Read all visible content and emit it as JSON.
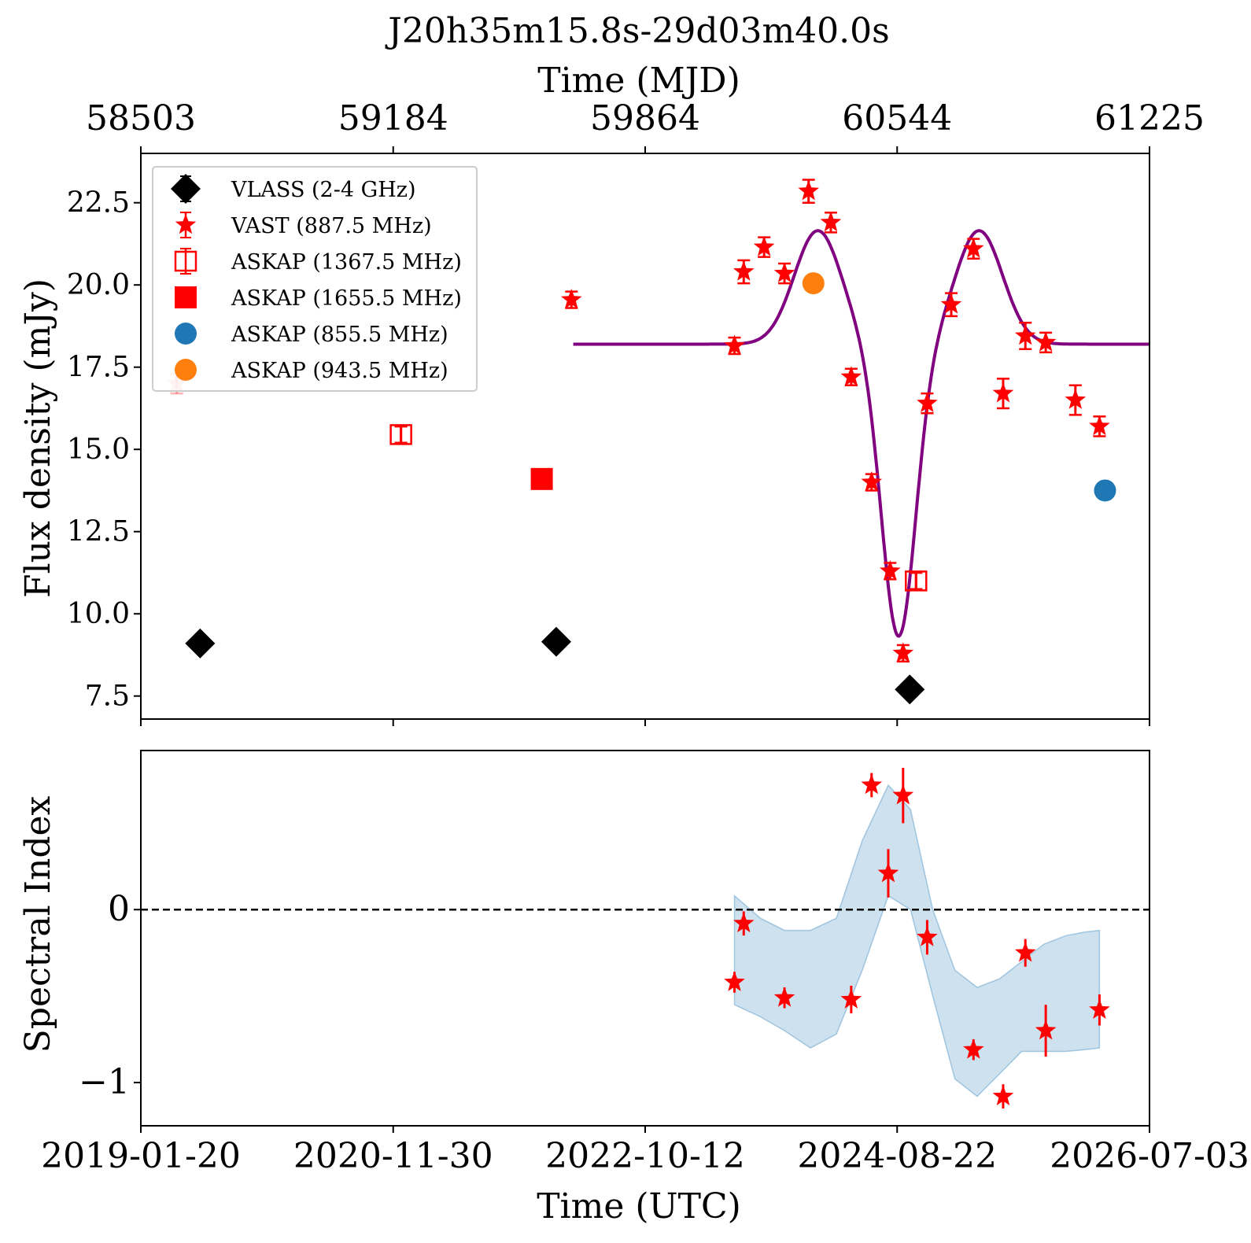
{
  "chart_data": [
    {
      "type": "scatter",
      "title": "J20h35m15.8s-29d03m40.0s",
      "top_axis_label": "Time (MJD)",
      "top_ticks": [
        "58503",
        "59184",
        "59864",
        "60544",
        "61225"
      ],
      "ylabel": "Flux density (mJy)",
      "ylim": [
        6.8,
        24.0
      ],
      "yticks": [
        "7.5",
        "10.0",
        "12.5",
        "15.0",
        "17.5",
        "20.0",
        "22.5"
      ],
      "xlim_mjd": [
        58503,
        61225
      ],
      "grid": false,
      "legend_position": "upper-left",
      "series": [
        {
          "name": "VLASS (2-4 GHz)",
          "marker": "diamond",
          "color": "#000000",
          "points": [
            {
              "mjd": 58663,
              "y": 9.1,
              "err": 0.0
            },
            {
              "mjd": 59624,
              "y": 9.15,
              "err": 0.0
            },
            {
              "mjd": 60578,
              "y": 7.7,
              "err": 0.0
            }
          ]
        },
        {
          "name": "VAST (887.5 MHz)",
          "marker": "star",
          "color": "#ff0000",
          "points": [
            {
              "mjd": 58600,
              "y": 17.0,
              "err": 0.3,
              "faded": true
            },
            {
              "mjd": 59665,
              "y": 19.55,
              "err": 0.25
            },
            {
              "mjd": 60105,
              "y": 18.15,
              "err": 0.25
            },
            {
              "mjd": 60130,
              "y": 20.4,
              "err": 0.35
            },
            {
              "mjd": 60185,
              "y": 21.15,
              "err": 0.3
            },
            {
              "mjd": 60240,
              "y": 20.35,
              "err": 0.3
            },
            {
              "mjd": 60305,
              "y": 22.85,
              "err": 0.35
            },
            {
              "mjd": 60365,
              "y": 21.9,
              "err": 0.3
            },
            {
              "mjd": 60420,
              "y": 17.2,
              "err": 0.25
            },
            {
              "mjd": 60475,
              "y": 14.0,
              "err": 0.25
            },
            {
              "mjd": 60525,
              "y": 11.3,
              "err": 0.25
            },
            {
              "mjd": 60560,
              "y": 8.8,
              "err": 0.25
            },
            {
              "mjd": 60625,
              "y": 16.4,
              "err": 0.3
            },
            {
              "mjd": 60690,
              "y": 19.4,
              "err": 0.35
            },
            {
              "mjd": 60750,
              "y": 21.1,
              "err": 0.3
            },
            {
              "mjd": 60830,
              "y": 16.7,
              "err": 0.45
            },
            {
              "mjd": 60890,
              "y": 18.45,
              "err": 0.4
            },
            {
              "mjd": 60945,
              "y": 18.25,
              "err": 0.3
            },
            {
              "mjd": 61025,
              "y": 16.5,
              "err": 0.45
            },
            {
              "mjd": 61090,
              "y": 15.7,
              "err": 0.3
            }
          ]
        },
        {
          "name": "ASKAP (1367.5 MHz)",
          "marker": "open-square",
          "color": "#ff0000",
          "points": [
            {
              "mjd": 59205,
              "y": 15.45,
              "err": 0.25
            },
            {
              "mjd": 60595,
              "y": 11.0,
              "err": 0.25
            }
          ]
        },
        {
          "name": "ASKAP (1655.5 MHz)",
          "marker": "square",
          "color": "#ff0000",
          "points": [
            {
              "mjd": 59585,
              "y": 14.1,
              "err": 0.1
            }
          ]
        },
        {
          "name": "ASKAP (855.5 MHz)",
          "marker": "circle",
          "color": "#1f77b4",
          "points": [
            {
              "mjd": 61105,
              "y": 13.75,
              "err": 0.1
            }
          ]
        },
        {
          "name": "ASKAP (943.5 MHz)",
          "marker": "circle",
          "color": "#ff7f0e",
          "points": [
            {
              "mjd": 60318,
              "y": 20.05,
              "err": 0.1
            }
          ]
        }
      ],
      "model_curve": {
        "color": "#800080",
        "x_start_mjd": 59670,
        "x_end_mjd": 61225,
        "baseline": 18.2,
        "components": [
          {
            "center_mjd": 60330,
            "amplitude": 3.45,
            "width_mjd": 90
          },
          {
            "center_mjd": 60548,
            "amplitude": -8.9,
            "width_mjd": 65
          },
          {
            "center_mjd": 60765,
            "amplitude": 3.45,
            "width_mjd": 90
          }
        ]
      }
    },
    {
      "type": "scatter",
      "ylabel": "Spectral Index",
      "ylim": [
        -1.25,
        0.92
      ],
      "yticks": [
        "0",
        "−1"
      ],
      "xlabel": "Time (UTC)",
      "xticks": [
        "2019-01-20",
        "2020-11-30",
        "2022-10-12",
        "2024-08-22",
        "2026-07-03"
      ],
      "xlim_mjd": [
        58503,
        61225
      ],
      "reference_line": {
        "y": 0,
        "style": "dashed",
        "color": "#000000"
      },
      "band": {
        "color": "#1f77b4",
        "x_mjd": [
          60105,
          60175,
          60240,
          60310,
          60380,
          60450,
          60520,
          60580,
          60640,
          60700,
          60760,
          60820,
          60880,
          60940,
          61000,
          61050,
          61090
        ],
        "lower": [
          -0.55,
          -0.62,
          -0.7,
          -0.8,
          -0.72,
          -0.35,
          0.08,
          0.0,
          -0.5,
          -0.98,
          -1.08,
          -0.95,
          -0.82,
          -0.82,
          -0.82,
          -0.81,
          -0.8
        ],
        "upper": [
          0.08,
          -0.05,
          -0.12,
          -0.12,
          -0.05,
          0.4,
          0.72,
          0.58,
          0.0,
          -0.35,
          -0.45,
          -0.4,
          -0.3,
          -0.2,
          -0.15,
          -0.13,
          -0.12
        ]
      },
      "series": [
        {
          "name": "",
          "marker": "star",
          "color": "#ff0000",
          "points": [
            {
              "mjd": 60105,
              "y": -0.42,
              "err": 0.06
            },
            {
              "mjd": 60130,
              "y": -0.08,
              "err": 0.07
            },
            {
              "mjd": 60240,
              "y": -0.51,
              "err": 0.06
            },
            {
              "mjd": 60420,
              "y": -0.52,
              "err": 0.08
            },
            {
              "mjd": 60475,
              "y": 0.72,
              "err": 0.07
            },
            {
              "mjd": 60520,
              "y": 0.21,
              "err": 0.14
            },
            {
              "mjd": 60560,
              "y": 0.66,
              "err": 0.16
            },
            {
              "mjd": 60625,
              "y": -0.16,
              "err": 0.1
            },
            {
              "mjd": 60750,
              "y": -0.81,
              "err": 0.06
            },
            {
              "mjd": 60830,
              "y": -1.08,
              "err": 0.07
            },
            {
              "mjd": 60890,
              "y": -0.25,
              "err": 0.08
            },
            {
              "mjd": 60945,
              "y": -0.7,
              "err": 0.15
            },
            {
              "mjd": 61090,
              "y": -0.58,
              "err": 0.09
            }
          ]
        }
      ]
    }
  ]
}
